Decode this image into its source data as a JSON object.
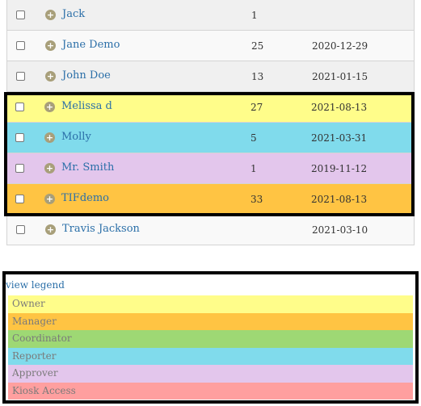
{
  "rows": [
    {
      "name": "Jack",
      "count": "1",
      "date": "",
      "color": "#f0f0f0"
    },
    {
      "name": "Jane Demo",
      "count": "25",
      "date": "2020-12-29",
      "color": "#f9f9f9"
    },
    {
      "name": "John Doe",
      "count": "13",
      "date": "2021-01-15",
      "color": "#f0f0f0"
    },
    {
      "name": "Melissa d",
      "count": "27",
      "date": "2021-08-13",
      "color": "#fffd8a"
    },
    {
      "name": "Molly",
      "count": "5",
      "date": "2021-03-31",
      "color": "#80dbec"
    },
    {
      "name": "Mr. Smith",
      "count": "1",
      "date": "2019-11-12",
      "color": "#e3c6ec"
    },
    {
      "name": "TIFdemo",
      "count": "33",
      "date": "2021-08-13",
      "color": "#ffc443"
    },
    {
      "name": "Travis Jackson",
      "count": "",
      "date": "2021-03-10",
      "color": "#f9f9f9"
    }
  ],
  "legend": {
    "toggle_label": "view legend",
    "items": [
      {
        "label": "Owner",
        "color": "#fffd8a"
      },
      {
        "label": "Manager",
        "color": "#ffc443"
      },
      {
        "label": "Coordinator",
        "color": "#9ed874"
      },
      {
        "label": "Reporter",
        "color": "#80dbec"
      },
      {
        "label": "Approver",
        "color": "#e3c6ec"
      },
      {
        "label": "Kiosk Access",
        "color": "#ff9f9f"
      }
    ]
  }
}
